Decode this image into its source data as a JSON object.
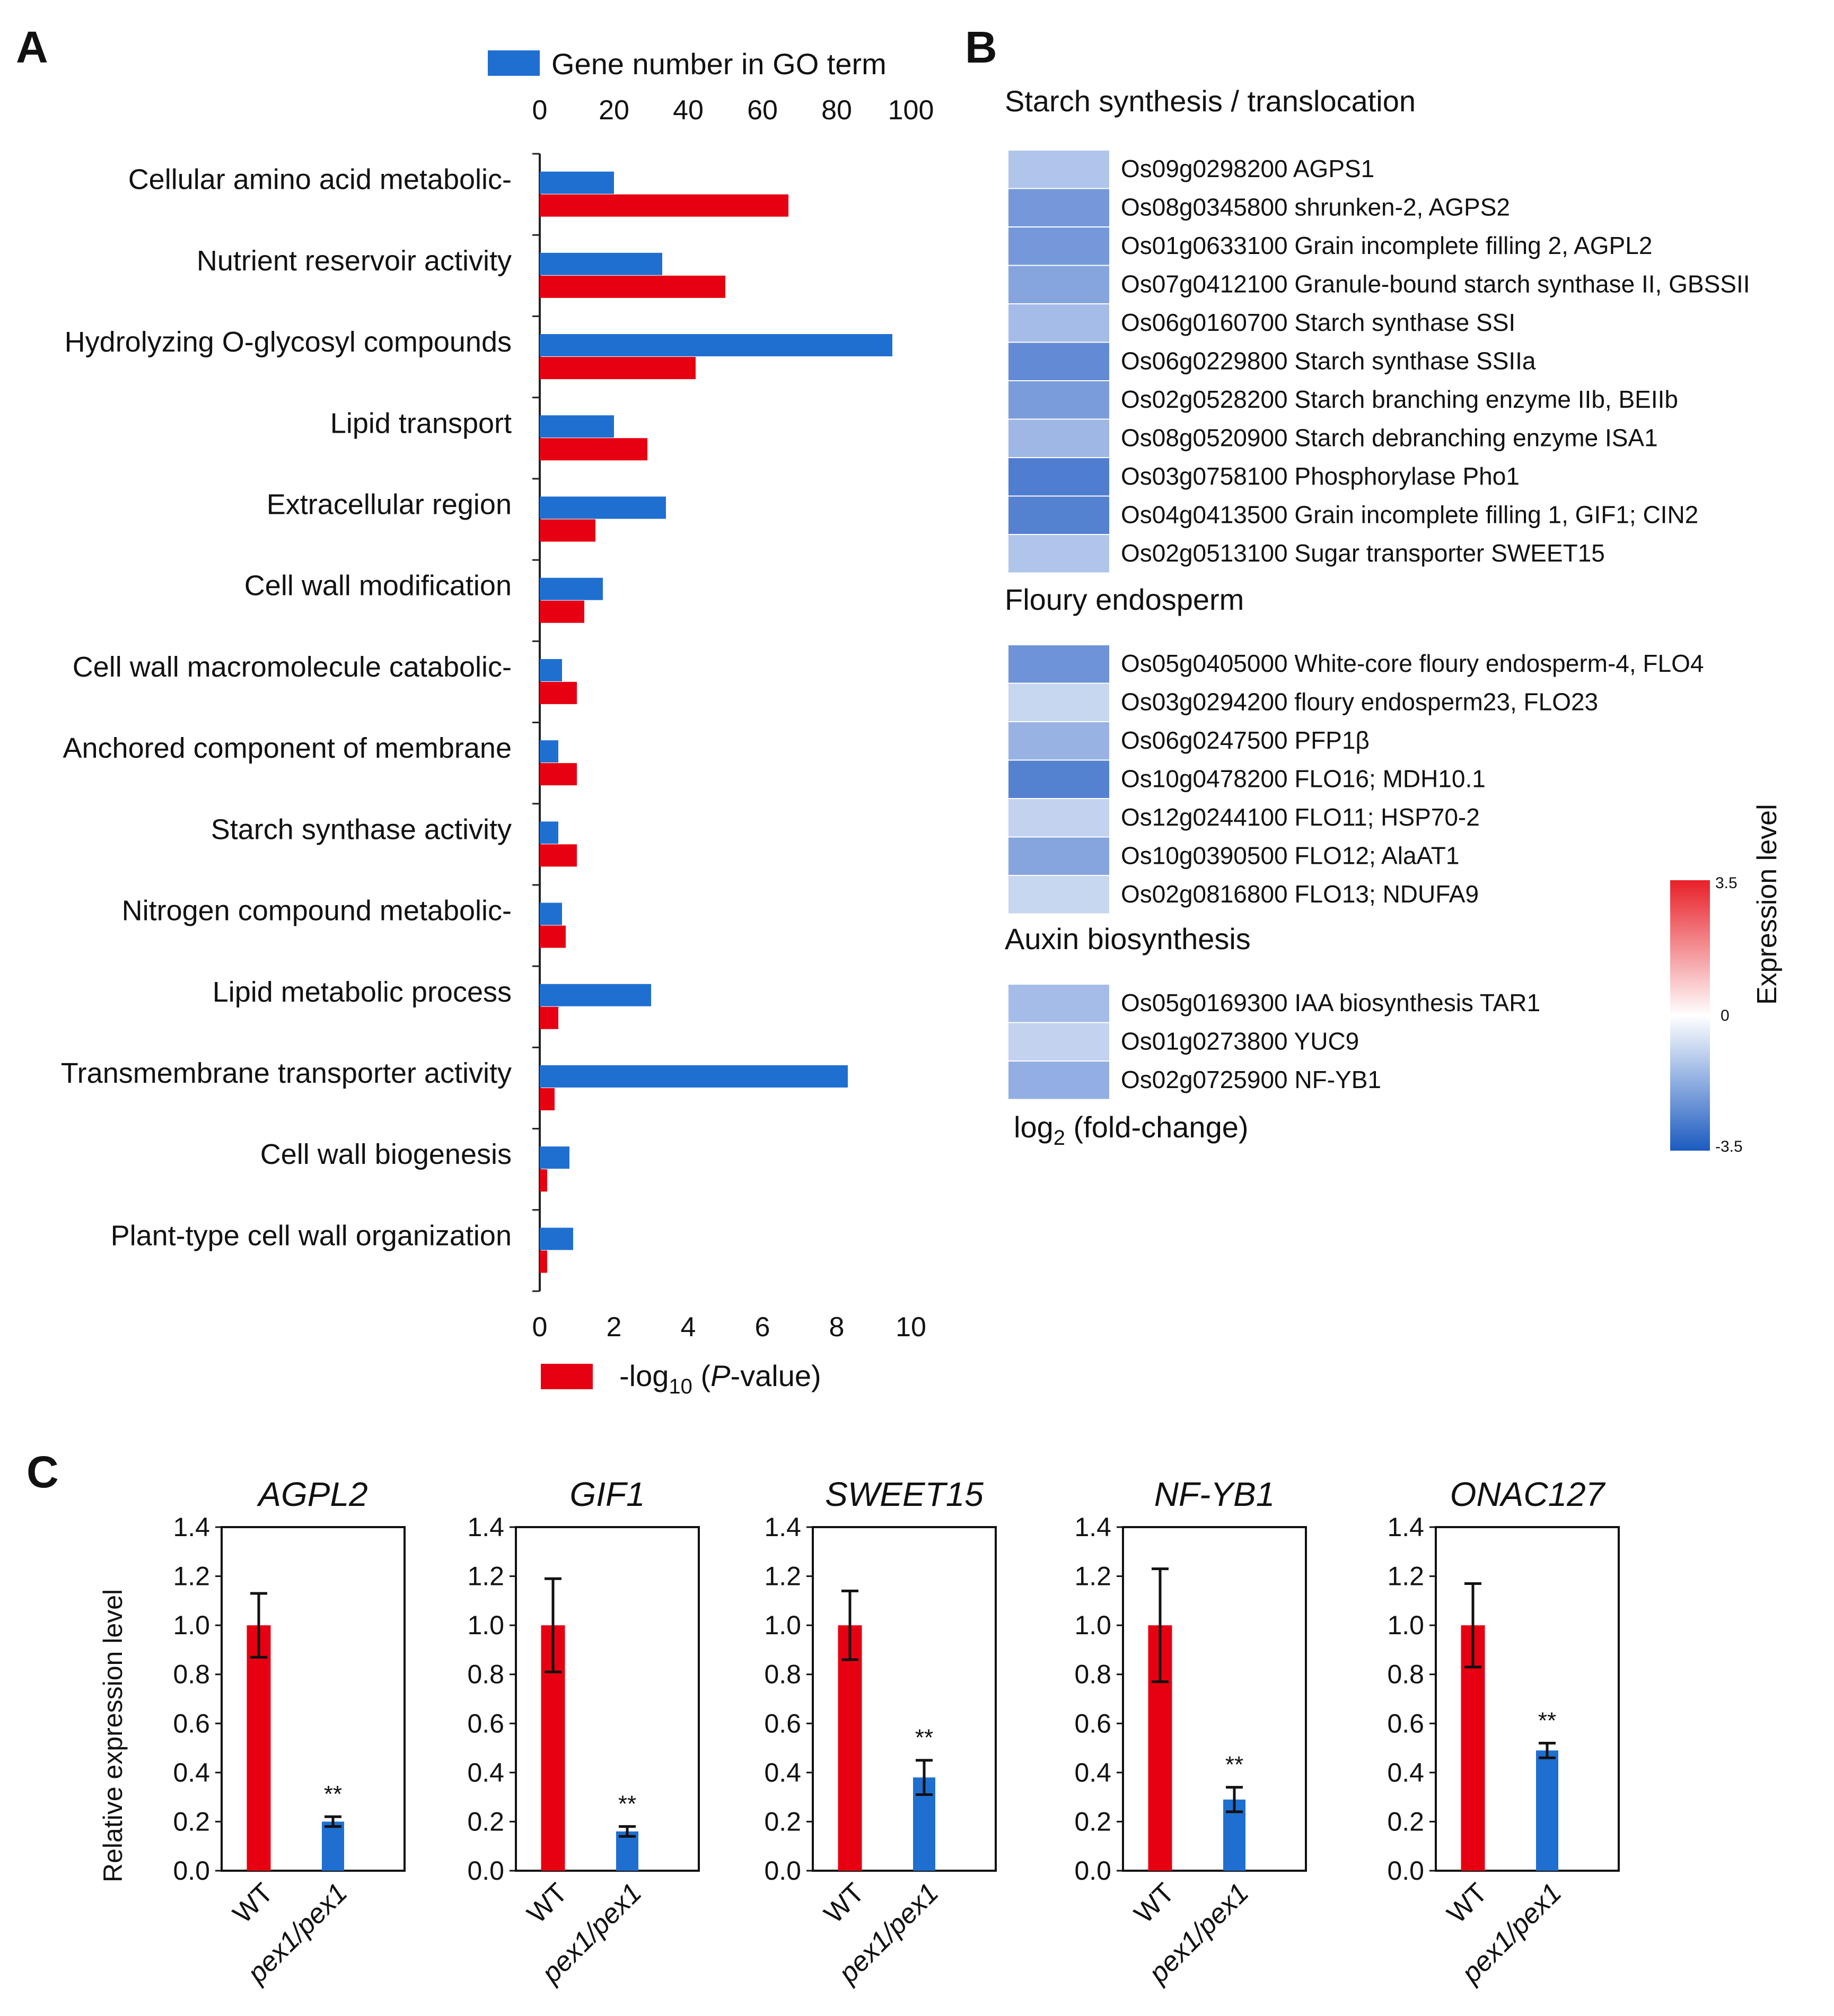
{
  "panel_labels": {
    "a": "A",
    "b": "B",
    "c": "C"
  },
  "colors": {
    "blue_bar": "#1f6fd1",
    "red_bar": "#e60012",
    "heat_low": "#2b62c6",
    "heat_mid": "#ffffff",
    "heat_high": "#e82028"
  },
  "chart_data": [
    {
      "type": "bar",
      "orientation": "horizontal",
      "panel": "A",
      "categories": [
        "Cellular amino acid metabolic-",
        "Nutrient reservoir activity",
        "Hydrolyzing O-glycosyl compounds",
        "Lipid transport",
        "Extracellular region",
        "Cell wall modification",
        "Cell wall macromolecule catabolic-",
        "Anchored component of membrane",
        "Starch synthase activity",
        "Nitrogen compound metabolic-",
        "Lipid metabolic process",
        "Transmembrane transporter activity",
        "Cell wall biogenesis",
        "Plant-type cell wall organization"
      ],
      "series": [
        {
          "name": "Gene number in GO term",
          "axis": "top",
          "values": [
            20,
            33,
            95,
            20,
            34,
            17,
            6,
            5,
            5,
            6,
            30,
            83,
            8,
            9
          ]
        },
        {
          "name_prefix": "-log",
          "name_sub": "10",
          "name_open": " (",
          "name_italic": "P",
          "name_suffix": "-value)",
          "axis": "bottom",
          "values": [
            6.7,
            5.0,
            4.2,
            2.9,
            1.5,
            1.2,
            1.0,
            1.0,
            1.0,
            0.7,
            0.5,
            0.4,
            0.2,
            0.2
          ]
        }
      ],
      "top_axis": {
        "range": [
          0,
          100
        ],
        "ticks": [
          "0",
          "20",
          "40",
          "60",
          "80",
          "100"
        ]
      },
      "bottom_axis": {
        "range": [
          0,
          10
        ],
        "ticks": [
          "0",
          "2",
          "4",
          "6",
          "8",
          "10"
        ]
      }
    },
    {
      "type": "heatmap",
      "panel": "B",
      "value_label": "log2 fold-change",
      "color_range": [
        -3.5,
        3.5
      ],
      "colorbar": {
        "title": "Expression level",
        "tick_max": "3.5",
        "tick_mid": "0",
        "tick_min": "-3.5"
      },
      "sections": [
        {
          "title": "Starch synthesis / translocation",
          "genes": [
            {
              "label": "Os09g0298200 AGPS1",
              "value": -1.3
            },
            {
              "label": "Os08g0345800 shrunken-2, AGPS2",
              "value": -2.3
            },
            {
              "label": "Os01g0633100 Grain incomplete filling 2, AGPL2",
              "value": -2.3
            },
            {
              "label": "Os07g0412100 Granule-bound starch synthase II, GBSSII",
              "value": -2.0
            },
            {
              "label": "Os06g0160700 Starch synthase SSI",
              "value": -1.5
            },
            {
              "label": "Os06g0229800 Starch synthase SSIIa",
              "value": -2.6
            },
            {
              "label": "Os02g0528200 Starch branching enzyme IIb, BEIIb",
              "value": -2.2
            },
            {
              "label": "Os08g0520900 Starch debranching enzyme ISA1",
              "value": -1.6
            },
            {
              "label": "Os03g0758100 Phosphorylase Pho1",
              "value": -2.9
            },
            {
              "label": "Os04g0413500 Grain incomplete filling 1, GIF1; CIN2",
              "value": -2.8
            },
            {
              "label": "Os02g0513100 Sugar transporter SWEET15",
              "value": -1.3
            }
          ]
        },
        {
          "title": "Floury endosperm",
          "genes": [
            {
              "label": "Os05g0405000 White-core floury endosperm-4, FLO4",
              "value": -2.4
            },
            {
              "label": "Os03g0294200 floury endosperm23, FLO23",
              "value": -0.9
            },
            {
              "label": "Os06g0247500 PFP1β",
              "value": -1.7
            },
            {
              "label": "Os10g0478200 FLO16; MDH10.1",
              "value": -2.8
            },
            {
              "label": "Os12g0244100 FLO11; HSP70-2",
              "value": -1.0
            },
            {
              "label": "Os10g0390500 FLO12; AlaAT1",
              "value": -2.0
            },
            {
              "label": "Os02g0816800 FLO13; NDUFA9",
              "value": -0.9
            }
          ]
        },
        {
          "title": "Auxin biosynthesis",
          "genes": [
            {
              "label": "Os05g0169300 IAA biosynthesis TAR1",
              "value": -1.5
            },
            {
              "label": "Os01g0273800 YUC9",
              "value": -1.0
            },
            {
              "label": "Os02g0725900 NF-YB1",
              "value": -1.8
            }
          ]
        }
      ],
      "footer_prefix": "log",
      "footer_sub": "2",
      "footer_suffix": " (fold-change)"
    },
    {
      "type": "bar",
      "panel": "C",
      "ylabel": "Relative expression level",
      "ylim": [
        0,
        1.4
      ],
      "yticks": [
        "0.0",
        "0.2",
        "0.4",
        "0.6",
        "0.8",
        "1.0",
        "1.2",
        "1.4"
      ],
      "categories": [
        "WT",
        "pex1/pex1"
      ],
      "significance": "**",
      "genes": [
        {
          "title": "AGPL2",
          "values": [
            1.0,
            0.2
          ],
          "errors": [
            0.13,
            0.02
          ]
        },
        {
          "title": "GIF1",
          "values": [
            1.0,
            0.16
          ],
          "errors": [
            0.19,
            0.02
          ]
        },
        {
          "title": "SWEET15",
          "values": [
            1.0,
            0.38
          ],
          "errors": [
            0.14,
            0.07
          ]
        },
        {
          "title": "NF-YB1",
          "values": [
            1.0,
            0.29
          ],
          "errors": [
            0.23,
            0.05
          ]
        },
        {
          "title": "ONAC127",
          "values": [
            1.0,
            0.49
          ],
          "errors": [
            0.17,
            0.03
          ]
        }
      ]
    }
  ]
}
